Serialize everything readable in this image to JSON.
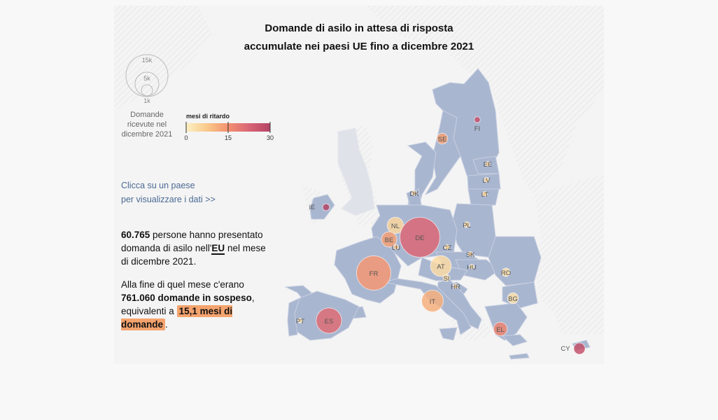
{
  "title_line1": "Domande di asilo in attesa di risposta",
  "title_line2": "accumulate nei paesi UE fino a dicembre 2021",
  "size_legend": {
    "values": [
      "15k",
      "5k",
      "1k"
    ],
    "label_lines": [
      "Domande",
      "ricevute nel",
      "dicembre 2021"
    ]
  },
  "color_legend": {
    "title": "mesi di ritardo",
    "ticks": [
      "0",
      "15",
      "30"
    ],
    "colors": [
      "#fdf0c2",
      "#f9c98a",
      "#f3916f",
      "#d96476",
      "#b44466"
    ]
  },
  "hint_lines": [
    "Clicca su un paese",
    "per visualizzare i dati >>"
  ],
  "stat1": {
    "number": "60.765",
    "text1": " persone hanno presentato domanda di asilo nell'",
    "link": "EU",
    "text2": " nel mese di dicembre 2021."
  },
  "stat2": {
    "text1": "Alla fine di quel mese c'erano ",
    "bold": "761.060 domande in sospeso",
    "text2": ", equivalenti a ",
    "highlight": "15,1 mesi di domande",
    "text3": "."
  },
  "countries": [
    {
      "code": "FI",
      "applications": 300,
      "months": 27
    },
    {
      "code": "SE",
      "applications": 1000,
      "months": 13
    },
    {
      "code": "EE",
      "applications": 20,
      "months": 5
    },
    {
      "code": "LV",
      "applications": 30,
      "months": 5
    },
    {
      "code": "LT",
      "applications": 40,
      "months": 6
    },
    {
      "code": "DK",
      "applications": 200,
      "months": 6
    },
    {
      "code": "IE",
      "applications": 400,
      "months": 30
    },
    {
      "code": "NL",
      "applications": 2300,
      "months": 5
    },
    {
      "code": "BE",
      "applications": 2000,
      "months": 13
    },
    {
      "code": "LU",
      "applications": 150,
      "months": 9
    },
    {
      "code": "DE",
      "applications": 13500,
      "months": 22
    },
    {
      "code": "PL",
      "applications": 300,
      "months": 4
    },
    {
      "code": "CZ",
      "applications": 60,
      "months": 6
    },
    {
      "code": "SK",
      "applications": 40,
      "months": 6
    },
    {
      "code": "FR",
      "applications": 10000,
      "months": 14
    },
    {
      "code": "AT",
      "applications": 3700,
      "months": 4
    },
    {
      "code": "HU",
      "applications": 10,
      "months": 3
    },
    {
      "code": "SI",
      "applications": 400,
      "months": 3
    },
    {
      "code": "HR",
      "applications": 200,
      "months": 5
    },
    {
      "code": "RO",
      "applications": 600,
      "months": 3
    },
    {
      "code": "BG",
      "applications": 1000,
      "months": 3
    },
    {
      "code": "IT",
      "applications": 4000,
      "months": 11
    },
    {
      "code": "PT",
      "applications": 150,
      "months": 3
    },
    {
      "code": "ES",
      "applications": 5500,
      "months": 21
    },
    {
      "code": "EL",
      "applications": 1600,
      "months": 17
    },
    {
      "code": "CY",
      "applications": 1100,
      "months": 27
    }
  ]
}
